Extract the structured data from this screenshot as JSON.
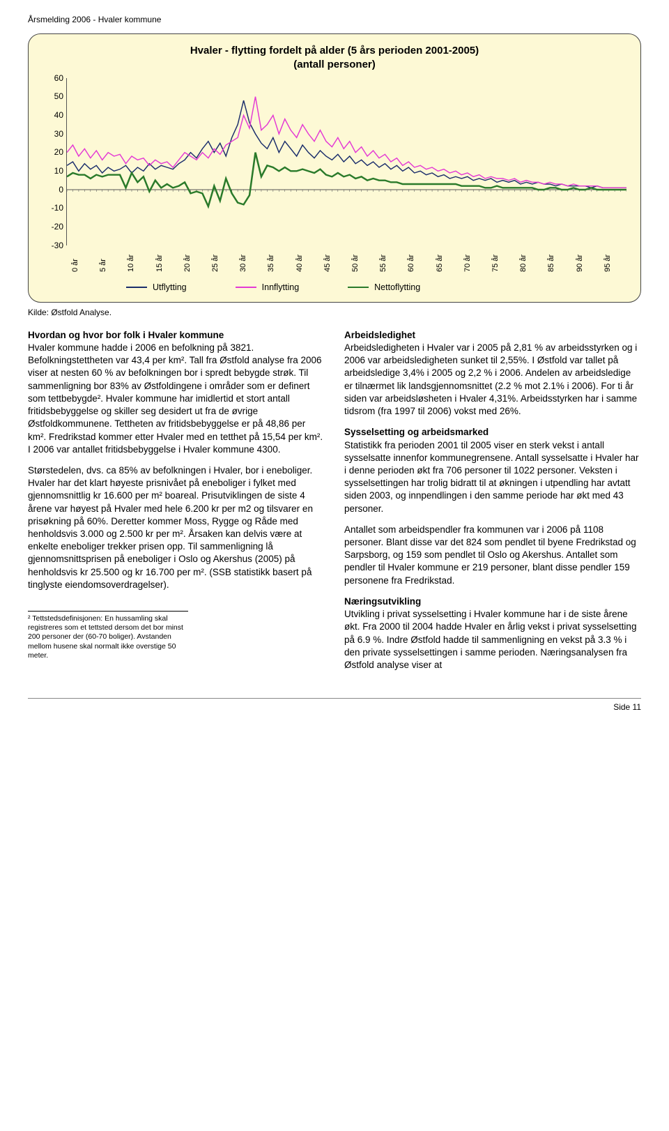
{
  "header": "Årsmelding 2006 - Hvaler kommune",
  "chart": {
    "title_line1": "Hvaler - flytting fordelt på alder (5 års perioden 2001-2005)",
    "title_line2": "(antall personer)",
    "background_color": "#fdf9d5",
    "ylim": [
      -30,
      60
    ],
    "ytick_step": 10,
    "yticks": [
      60,
      50,
      40,
      30,
      20,
      10,
      0,
      -10,
      -20,
      -30
    ],
    "xticks": [
      "0 år",
      "5 år",
      "10 år",
      "15 år",
      "20 år",
      "25 år",
      "30 år",
      "35 år",
      "40 år",
      "45 år",
      "50 år",
      "55 år",
      "60 år",
      "65 år",
      "70 år",
      "75 år",
      "80 år",
      "85 år",
      "90 år",
      "95 år"
    ],
    "series": {
      "utflytting": {
        "label": "Utflytting",
        "color": "#1a2d6b",
        "width": 1.4,
        "values": [
          13,
          15,
          10,
          14,
          11,
          13,
          9,
          12,
          10,
          11,
          13,
          9,
          12,
          10,
          14,
          11,
          13,
          12,
          11,
          14,
          16,
          20,
          17,
          22,
          26,
          20,
          25,
          18,
          28,
          35,
          48,
          36,
          30,
          25,
          22,
          28,
          20,
          26,
          22,
          18,
          24,
          20,
          17,
          21,
          18,
          16,
          19,
          15,
          18,
          14,
          16,
          13,
          15,
          12,
          14,
          11,
          13,
          10,
          12,
          9,
          10,
          8,
          9,
          7,
          8,
          6,
          7,
          6,
          7,
          5,
          6,
          5,
          6,
          4,
          5,
          4,
          5,
          3,
          4,
          3,
          4,
          3,
          3,
          2,
          3,
          2,
          2,
          2,
          2,
          1,
          2,
          1,
          1,
          1,
          1,
          1
        ]
      },
      "innflytting": {
        "label": "Innflytting",
        "color": "#e43ad4",
        "width": 1.4,
        "values": [
          20,
          24,
          18,
          22,
          17,
          21,
          16,
          20,
          18,
          19,
          14,
          18,
          16,
          17,
          13,
          16,
          14,
          15,
          12,
          16,
          20,
          18,
          16,
          20,
          17,
          22,
          19,
          24,
          26,
          28,
          40,
          33,
          50,
          32,
          35,
          40,
          30,
          38,
          32,
          28,
          35,
          30,
          26,
          32,
          26,
          23,
          28,
          22,
          26,
          20,
          23,
          18,
          21,
          17,
          19,
          15,
          17,
          13,
          15,
          12,
          13,
          11,
          12,
          10,
          11,
          9,
          10,
          8,
          9,
          7,
          8,
          6,
          7,
          6,
          6,
          5,
          6,
          4,
          5,
          4,
          4,
          3,
          4,
          3,
          3,
          2,
          3,
          2,
          2,
          2,
          2,
          1,
          1,
          1,
          1,
          1
        ]
      },
      "nettoflytting": {
        "label": "Nettoflytting",
        "color": "#2a7a2a",
        "width": 2.4,
        "values": [
          7,
          9,
          8,
          8,
          6,
          8,
          7,
          8,
          8,
          8,
          1,
          9,
          4,
          7,
          -1,
          5,
          1,
          3,
          1,
          2,
          4,
          -2,
          -1,
          -2,
          -9,
          2,
          -6,
          6,
          -2,
          -7,
          -8,
          -3,
          20,
          7,
          13,
          12,
          10,
          12,
          10,
          10,
          11,
          10,
          9,
          11,
          8,
          7,
          9,
          7,
          8,
          6,
          7,
          5,
          6,
          5,
          5,
          4,
          4,
          3,
          3,
          3,
          3,
          3,
          3,
          3,
          3,
          3,
          3,
          2,
          2,
          2,
          2,
          1,
          1,
          2,
          1,
          1,
          1,
          1,
          1,
          1,
          0,
          0,
          1,
          1,
          0,
          0,
          1,
          0,
          0,
          1,
          0,
          0,
          0,
          0,
          0,
          0
        ]
      }
    },
    "legend_order": [
      "utflytting",
      "innflytting",
      "nettoflytting"
    ]
  },
  "source": "Kilde: Østfold Analyse.",
  "left_col": {
    "h1": "Hvordan og hvor bor folk i Hvaler kommune",
    "p1": "Hvaler kommune hadde i 2006 en befolkning på 3821. Befolkningstettheten var 43,4 per km². Tall fra Østfold analyse fra 2006 viser at nesten 60 % av befolkningen bor i spredt bebygde strøk. Til sammenligning bor 83% av Østfoldingene i områder som er definert som tettbebygde². Hvaler kommune har imidlertid et stort antall fritidsbebyggelse og skiller seg desidert ut fra de øvrige Østfoldkommunene. Tettheten av fritidsbebyggelse er på 48,86 per km². Fredrikstad kommer etter Hvaler med en tetthet på 15,54 per km². I 2006 var antallet fritidsbebyggelse i Hvaler kommune 4300.",
    "p2": "Størstedelen, dvs. ca 85% av befolkningen i Hvaler, bor i eneboliger. Hvaler har det klart høyeste prisnivået på eneboliger i fylket med gjennomsnittlig kr 16.600 per m² boareal. Prisutviklingen de siste 4 årene var høyest på Hvaler med hele 6.200 kr per m2 og tilsvarer en prisøkning på 60%. Deretter kommer Moss, Rygge og Råde med henholdsvis 3.000 og 2.500 kr per m². Årsaken kan delvis være at enkelte eneboliger trekker prisen opp. Til sammenligning lå gjennomsnittsprisen på eneboliger i Oslo og Akershus (2005) på henholdsvis kr 25.500 og kr 16.700 per m². (SSB statistikk basert på tinglyste eiendomsoverdragelser).",
    "footnote": "² Tettstedsdefinisjonen: En hussamling skal registreres som et tettsted dersom det bor minst 200 personer der (60-70 boliger). Avstanden mellom husene skal normalt ikke overstige 50 meter."
  },
  "right_col": {
    "h1": "Arbeidsledighet",
    "p1": "Arbeidsledigheten i Hvaler var i 2005 på 2,81 % av arbeidsstyrken og i 2006 var arbeidsledigheten sunket til 2,55%. I Østfold var tallet på arbeidsledige 3,4% i 2005 og 2,2 % i 2006. Andelen av arbeidsledige er tilnærmet lik landsgjennomsnittet (2.2 % mot 2.1% i 2006). For ti år siden var arbeidsløsheten i Hvaler 4,31%. Arbeidsstyrken har i samme tidsrom (fra 1997 til 2006) vokst med 26%.",
    "h2": "Sysselsetting og arbeidsmarked",
    "p2": "Statistikk fra perioden 2001 til 2005 viser en sterk vekst i antall sysselsatte innenfor kommunegrensene. Antall sysselsatte i Hvaler har i denne perioden økt fra 706 personer til 1022 personer. Veksten i sysselsettingen har trolig bidratt til at økningen i utpendling har avtatt siden 2003, og innpendlingen i den samme periode har økt med 43 personer.",
    "p3": "Antallet som arbeidspendler fra kommunen var i 2006 på 1108 personer. Blant disse var det 824 som pendlet til byene Fredrikstad og Sarpsborg, og 159 som pendlet til Oslo og Akershus. Antallet som pendler til Hvaler kommune er 219 personer, blant disse pendler 159 personene fra Fredrikstad.",
    "h3": "Næringsutvikling",
    "p4": "Utvikling i privat sysselsetting i Hvaler kommune har i de siste årene økt. Fra 2000 til 2004 hadde Hvaler en årlig vekst i privat sysselsetting på 6.9 %. Indre Østfold hadde til sammenligning en vekst på 3.3 % i den private sysselsettingen i samme perioden. Næringsanalysen fra Østfold analyse viser at"
  },
  "footer": "Side 11"
}
